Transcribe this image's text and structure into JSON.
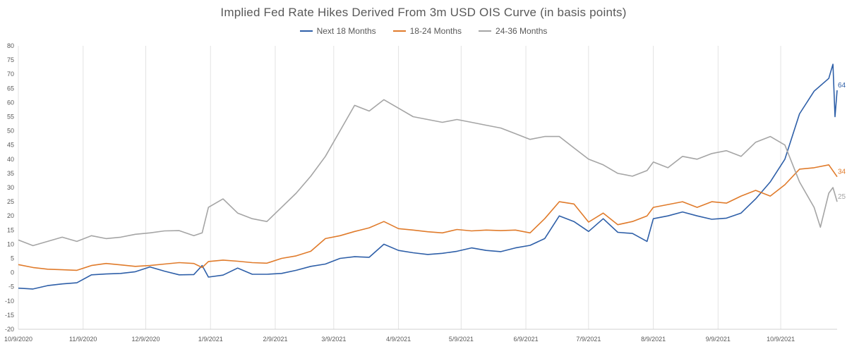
{
  "chart_data": {
    "type": "line",
    "title": "Implied Fed Rate Hikes Derived From 3m USD OIS Curve (in basis points)",
    "xlabel": "",
    "ylabel": "",
    "ylim": [
      -20,
      80
    ],
    "ytick_step": 5,
    "grid": "vertical",
    "legend_position": "top-center",
    "x_start": "2020-10-09",
    "x_end": "2021-11-05",
    "x_tick_labels": [
      "10/9/2020",
      "11/9/2020",
      "12/9/2020",
      "1/9/2021",
      "2/9/2021",
      "3/9/2021",
      "4/9/2021",
      "5/9/2021",
      "6/9/2021",
      "7/9/2021",
      "8/9/2021",
      "9/9/2021",
      "10/9/2021"
    ],
    "x_tick_dates": [
      "2020-10-09",
      "2020-11-09",
      "2020-12-09",
      "2021-01-09",
      "2021-02-09",
      "2021-03-09",
      "2021-04-09",
      "2021-05-09",
      "2021-06-09",
      "2021-07-09",
      "2021-08-09",
      "2021-09-09",
      "2021-10-09"
    ],
    "series": [
      {
        "name": "Next 18 Months",
        "color": "#2E5FA8",
        "end_label": "64",
        "points": [
          [
            "2020-10-09",
            -5.5
          ],
          [
            "2020-10-16",
            -5.8
          ],
          [
            "2020-10-23",
            -4.6
          ],
          [
            "2020-10-30",
            -4.0
          ],
          [
            "2020-11-06",
            -3.6
          ],
          [
            "2020-11-13",
            -0.8
          ],
          [
            "2020-11-20",
            -0.5
          ],
          [
            "2020-11-27",
            -0.3
          ],
          [
            "2020-12-04",
            0.3
          ],
          [
            "2020-12-11",
            2.0
          ],
          [
            "2020-12-18",
            0.5
          ],
          [
            "2020-12-25",
            -0.8
          ],
          [
            "2021-01-01",
            -0.7
          ],
          [
            "2021-01-05",
            2.5
          ],
          [
            "2021-01-08",
            -1.6
          ],
          [
            "2021-01-15",
            -0.9
          ],
          [
            "2021-01-22",
            1.6
          ],
          [
            "2021-01-29",
            -0.6
          ],
          [
            "2021-02-05",
            -0.6
          ],
          [
            "2021-02-12",
            -0.3
          ],
          [
            "2021-02-19",
            0.8
          ],
          [
            "2021-02-26",
            2.2
          ],
          [
            "2021-03-05",
            3.0
          ],
          [
            "2021-03-12",
            5.0
          ],
          [
            "2021-03-19",
            5.6
          ],
          [
            "2021-03-26",
            5.4
          ],
          [
            "2021-04-02",
            10.0
          ],
          [
            "2021-04-09",
            7.8
          ],
          [
            "2021-04-16",
            7.0
          ],
          [
            "2021-04-23",
            6.4
          ],
          [
            "2021-04-30",
            6.8
          ],
          [
            "2021-05-07",
            7.5
          ],
          [
            "2021-05-14",
            8.7
          ],
          [
            "2021-05-21",
            7.8
          ],
          [
            "2021-05-28",
            7.4
          ],
          [
            "2021-06-04",
            8.7
          ],
          [
            "2021-06-11",
            9.6
          ],
          [
            "2021-06-18",
            12.0
          ],
          [
            "2021-06-25",
            20.0
          ],
          [
            "2021-07-02",
            18.0
          ],
          [
            "2021-07-09",
            14.5
          ],
          [
            "2021-07-16",
            19.0
          ],
          [
            "2021-07-23",
            14.2
          ],
          [
            "2021-07-30",
            13.8
          ],
          [
            "2021-08-06",
            11.0
          ],
          [
            "2021-08-09",
            19.0
          ],
          [
            "2021-08-16",
            20.0
          ],
          [
            "2021-08-23",
            21.4
          ],
          [
            "2021-08-30",
            20.0
          ],
          [
            "2021-09-06",
            18.8
          ],
          [
            "2021-09-13",
            19.2
          ],
          [
            "2021-09-20",
            21.0
          ],
          [
            "2021-09-27",
            26.0
          ],
          [
            "2021-10-04",
            32.0
          ],
          [
            "2021-10-11",
            40.0
          ],
          [
            "2021-10-18",
            56.0
          ],
          [
            "2021-10-25",
            64.0
          ],
          [
            "2021-11-01",
            68.5
          ],
          [
            "2021-11-02",
            71.0
          ],
          [
            "2021-11-03",
            73.5
          ],
          [
            "2021-11-04",
            55.0
          ],
          [
            "2021-11-05",
            64.3
          ]
        ]
      },
      {
        "name": "18-24 Months",
        "color": "#E07B2B",
        "end_label": "34",
        "points": [
          [
            "2020-10-09",
            2.8
          ],
          [
            "2020-10-16",
            1.8
          ],
          [
            "2020-10-23",
            1.2
          ],
          [
            "2020-10-30",
            1.0
          ],
          [
            "2020-11-06",
            0.8
          ],
          [
            "2020-11-13",
            2.5
          ],
          [
            "2020-11-20",
            3.2
          ],
          [
            "2020-11-27",
            2.7
          ],
          [
            "2020-12-04",
            2.2
          ],
          [
            "2020-12-11",
            2.5
          ],
          [
            "2020-12-18",
            3.0
          ],
          [
            "2020-12-25",
            3.5
          ],
          [
            "2021-01-01",
            3.2
          ],
          [
            "2021-01-05",
            1.8
          ],
          [
            "2021-01-08",
            3.9
          ],
          [
            "2021-01-15",
            4.4
          ],
          [
            "2021-01-22",
            4.0
          ],
          [
            "2021-01-29",
            3.5
          ],
          [
            "2021-02-05",
            3.3
          ],
          [
            "2021-02-12",
            5.0
          ],
          [
            "2021-02-19",
            5.9
          ],
          [
            "2021-02-26",
            7.5
          ],
          [
            "2021-03-05",
            12.0
          ],
          [
            "2021-03-12",
            13.0
          ],
          [
            "2021-03-19",
            14.5
          ],
          [
            "2021-03-26",
            15.8
          ],
          [
            "2021-04-02",
            18.0
          ],
          [
            "2021-04-09",
            15.5
          ],
          [
            "2021-04-16",
            15.0
          ],
          [
            "2021-04-23",
            14.4
          ],
          [
            "2021-04-30",
            14.0
          ],
          [
            "2021-05-07",
            15.2
          ],
          [
            "2021-05-14",
            14.7
          ],
          [
            "2021-05-21",
            15.0
          ],
          [
            "2021-05-28",
            14.8
          ],
          [
            "2021-06-04",
            15.0
          ],
          [
            "2021-06-11",
            14.0
          ],
          [
            "2021-06-18",
            19.0
          ],
          [
            "2021-06-25",
            25.0
          ],
          [
            "2021-07-02",
            24.2
          ],
          [
            "2021-07-09",
            17.8
          ],
          [
            "2021-07-16",
            21.0
          ],
          [
            "2021-07-23",
            16.9
          ],
          [
            "2021-07-30",
            18.0
          ],
          [
            "2021-08-06",
            20.0
          ],
          [
            "2021-08-09",
            23.0
          ],
          [
            "2021-08-16",
            24.0
          ],
          [
            "2021-08-23",
            25.0
          ],
          [
            "2021-08-30",
            23.0
          ],
          [
            "2021-09-06",
            25.0
          ],
          [
            "2021-09-13",
            24.5
          ],
          [
            "2021-09-20",
            27.0
          ],
          [
            "2021-09-27",
            29.0
          ],
          [
            "2021-10-04",
            27.0
          ],
          [
            "2021-10-11",
            31.0
          ],
          [
            "2021-10-18",
            36.5
          ],
          [
            "2021-10-25",
            37.0
          ],
          [
            "2021-11-01",
            38.0
          ],
          [
            "2021-11-05",
            33.8
          ]
        ]
      },
      {
        "name": "24-36 Months",
        "color": "#A5A5A5",
        "end_label": "25",
        "points": [
          [
            "2020-10-09",
            11.5
          ],
          [
            "2020-10-16",
            9.5
          ],
          [
            "2020-10-23",
            11.0
          ],
          [
            "2020-10-30",
            12.5
          ],
          [
            "2020-11-06",
            11.0
          ],
          [
            "2020-11-13",
            13.0
          ],
          [
            "2020-11-20",
            12.0
          ],
          [
            "2020-11-27",
            12.5
          ],
          [
            "2020-12-04",
            13.5
          ],
          [
            "2020-12-11",
            14.0
          ],
          [
            "2020-12-18",
            14.7
          ],
          [
            "2020-12-25",
            14.8
          ],
          [
            "2021-01-01",
            13.0
          ],
          [
            "2021-01-05",
            14.0
          ],
          [
            "2021-01-08",
            23.0
          ],
          [
            "2021-01-15",
            26.0
          ],
          [
            "2021-01-22",
            21.0
          ],
          [
            "2021-01-29",
            19.0
          ],
          [
            "2021-02-05",
            18.0
          ],
          [
            "2021-02-12",
            23.0
          ],
          [
            "2021-02-19",
            28.0
          ],
          [
            "2021-02-26",
            34.0
          ],
          [
            "2021-03-05",
            41.0
          ],
          [
            "2021-03-12",
            50.0
          ],
          [
            "2021-03-19",
            59.0
          ],
          [
            "2021-03-26",
            57.0
          ],
          [
            "2021-04-02",
            61.0
          ],
          [
            "2021-04-09",
            58.0
          ],
          [
            "2021-04-16",
            55.0
          ],
          [
            "2021-04-23",
            54.0
          ],
          [
            "2021-04-30",
            53.0
          ],
          [
            "2021-05-07",
            54.0
          ],
          [
            "2021-05-14",
            53.0
          ],
          [
            "2021-05-21",
            52.0
          ],
          [
            "2021-05-28",
            51.0
          ],
          [
            "2021-06-04",
            49.0
          ],
          [
            "2021-06-11",
            47.0
          ],
          [
            "2021-06-18",
            48.0
          ],
          [
            "2021-06-25",
            48.0
          ],
          [
            "2021-07-02",
            44.0
          ],
          [
            "2021-07-09",
            40.0
          ],
          [
            "2021-07-16",
            38.0
          ],
          [
            "2021-07-23",
            35.0
          ],
          [
            "2021-07-30",
            34.0
          ],
          [
            "2021-08-06",
            36.0
          ],
          [
            "2021-08-09",
            39.0
          ],
          [
            "2021-08-16",
            37.0
          ],
          [
            "2021-08-23",
            41.0
          ],
          [
            "2021-08-30",
            40.0
          ],
          [
            "2021-09-06",
            42.0
          ],
          [
            "2021-09-13",
            43.0
          ],
          [
            "2021-09-20",
            41.0
          ],
          [
            "2021-09-27",
            46.0
          ],
          [
            "2021-10-04",
            48.0
          ],
          [
            "2021-10-11",
            45.0
          ],
          [
            "2021-10-18",
            32.0
          ],
          [
            "2021-10-25",
            23.0
          ],
          [
            "2021-10-28",
            16.0
          ],
          [
            "2021-11-01",
            28.0
          ],
          [
            "2021-11-03",
            30.0
          ],
          [
            "2021-11-05",
            25.0
          ]
        ]
      }
    ]
  }
}
